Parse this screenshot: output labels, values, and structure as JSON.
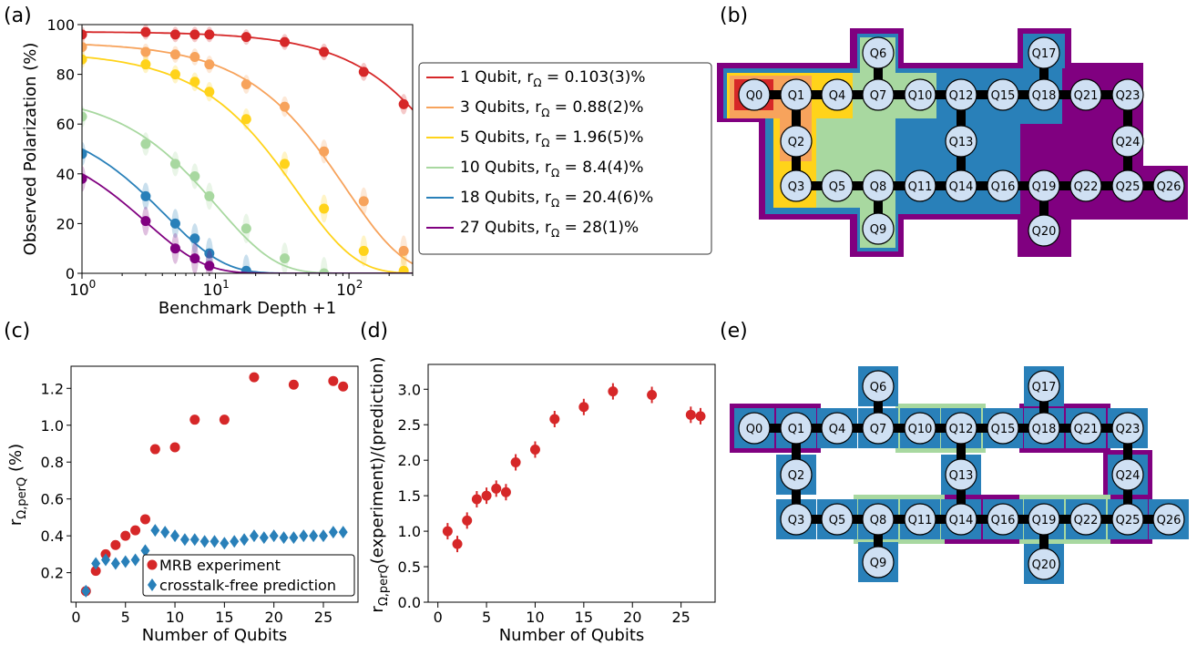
{
  "panel_labels": {
    "a": "(a)",
    "b": "(b)",
    "c": "(c)",
    "d": "(d)",
    "e": "(e)"
  },
  "colors": {
    "red": "#d62728",
    "orange": "#f7a35c",
    "yellow": "#ffd31a",
    "green": "#a8d8a0",
    "blue": "#2980b9",
    "purple": "#800080",
    "node_fill": "#cfe0f3",
    "edge": "#000000"
  },
  "chart_data": [
    {
      "id": "a",
      "type": "line",
      "xscale": "log",
      "xlabel": "Benchmark Depth +1",
      "ylabel": "Observed Polarization (%)",
      "xlim": [
        1,
        300
      ],
      "ylim": [
        0,
        100
      ],
      "xticks": [
        {
          "v": 1,
          "base": "10",
          "exp": "0"
        },
        {
          "v": 10,
          "base": "10",
          "exp": "1"
        },
        {
          "v": 100,
          "base": "10",
          "exp": "2"
        }
      ],
      "yticks": [
        0,
        20,
        40,
        60,
        80,
        100
      ],
      "legend_position": "right, outside",
      "series": [
        {
          "label": "1 Qubit,  r",
          "sub": "Ω",
          "value": " = 0.103(3)%",
          "color": "#d62728",
          "A": 97,
          "p": 0.9987,
          "x": [
            1,
            3,
            5,
            7,
            9,
            17,
            33,
            65,
            129,
            257
          ],
          "y": [
            96,
            97,
            96,
            96,
            96,
            95,
            93,
            89,
            81,
            68
          ]
        },
        {
          "label": "3 Qubits, r",
          "sub": "Ω",
          "value": " = 0.88(2)%",
          "color": "#f7a35c",
          "A": 92,
          "p": 0.9895,
          "x": [
            1,
            3,
            5,
            7,
            9,
            17,
            33,
            65,
            129,
            257
          ],
          "y": [
            91,
            89,
            88,
            87,
            84,
            76,
            67,
            49,
            29,
            9
          ]
        },
        {
          "label": "5 Qubits, r",
          "sub": "Ω",
          "value": " = 1.96(5)%",
          "color": "#ffd31a",
          "A": 87,
          "p": 0.976,
          "x": [
            1,
            3,
            5,
            7,
            9,
            17,
            33,
            65,
            129,
            257
          ],
          "y": [
            86,
            84,
            80,
            77,
            73,
            62,
            44,
            26,
            9,
            1
          ]
        },
        {
          "label": "10 Qubits, r",
          "sub": "Ω",
          "value": " = 8.4(4)%",
          "color": "#a8d8a0",
          "A": 66,
          "p": 0.908,
          "x": [
            1,
            3,
            5,
            7,
            9,
            17,
            33,
            65
          ],
          "y": [
            63,
            52,
            44,
            39,
            31,
            18,
            6,
            0
          ]
        },
        {
          "label": "18 Qubits, r",
          "sub": "Ω",
          "value": " = 20.4(6)%",
          "color": "#2980b9",
          "A": 50,
          "p": 0.79,
          "x": [
            1,
            3,
            5,
            7,
            9,
            17
          ],
          "y": [
            48,
            31,
            20,
            14,
            8,
            1
          ]
        },
        {
          "label": "27 Qubits, r",
          "sub": "Ω",
          "value": " = 28(1)%",
          "color": "#800080",
          "A": 40,
          "p": 0.72,
          "x": [
            1,
            3,
            5,
            7,
            9
          ],
          "y": [
            38,
            21,
            10,
            6,
            3
          ]
        }
      ]
    },
    {
      "id": "c",
      "type": "scatter",
      "xlabel": "Number of Qubits",
      "ylabel": "r",
      "ylabel_sub": "Ω,perQ",
      "ylabel_unit": " (%)",
      "xlim": [
        -0.5,
        28.5
      ],
      "ylim": [
        0.04,
        1.32
      ],
      "xticks": [
        0,
        5,
        10,
        15,
        20,
        25
      ],
      "yticks": [
        "0.2",
        "0.4",
        "0.6",
        "0.8",
        "1.0",
        "1.2"
      ],
      "legend_position": "lower-right",
      "series": [
        {
          "name": "MRB experiment",
          "color": "#d62728",
          "marker": "circle",
          "x": [
            1,
            2,
            3,
            4,
            5,
            6,
            7,
            8,
            10,
            12,
            15,
            18,
            22,
            26,
            27
          ],
          "y": [
            0.1,
            0.21,
            0.3,
            0.35,
            0.4,
            0.43,
            0.49,
            0.87,
            0.88,
            1.03,
            1.03,
            1.26,
            1.22,
            1.24,
            1.21
          ]
        },
        {
          "name": "crosstalk-free prediction",
          "color": "#2980b9",
          "marker": "diamond",
          "x": [
            1,
            2,
            3,
            4,
            5,
            6,
            7,
            8,
            9,
            10,
            11,
            12,
            13,
            14,
            15,
            16,
            17,
            18,
            19,
            20,
            21,
            22,
            23,
            24,
            25,
            26,
            27
          ],
          "y": [
            0.1,
            0.25,
            0.27,
            0.25,
            0.26,
            0.27,
            0.32,
            0.43,
            0.42,
            0.4,
            0.38,
            0.38,
            0.37,
            0.37,
            0.36,
            0.37,
            0.38,
            0.4,
            0.39,
            0.4,
            0.39,
            0.39,
            0.4,
            0.4,
            0.4,
            0.42,
            0.42
          ]
        }
      ]
    },
    {
      "id": "d",
      "type": "scatter",
      "xlabel": "Number of Qubits",
      "ylabel": "r",
      "ylabel_sub": "Ω,perQ",
      "ylabel_unit": "(experiment)/(prediction)",
      "xlim": [
        -1,
        28.5
      ],
      "ylim": [
        0,
        3.35
      ],
      "xticks": [
        0,
        5,
        10,
        15,
        20,
        25
      ],
      "yticks": [
        "0.0",
        "0.5",
        "1.0",
        "1.5",
        "2.0",
        "2.5",
        "3.0"
      ],
      "series": [
        {
          "color": "#d62728",
          "marker": "circle",
          "x": [
            1,
            2,
            3,
            4,
            5,
            6,
            7,
            8,
            10,
            12,
            15,
            18,
            22,
            26,
            27
          ],
          "y": [
            1.0,
            0.82,
            1.15,
            1.45,
            1.5,
            1.6,
            1.55,
            1.97,
            2.15,
            2.58,
            2.75,
            2.97,
            2.92,
            2.64,
            2.62
          ]
        }
      ]
    }
  ],
  "device_b": {
    "nodes": [
      "Q0",
      "Q1",
      "Q2",
      "Q3",
      "Q4",
      "Q5",
      "Q6",
      "Q7",
      "Q8",
      "Q9",
      "Q10",
      "Q11",
      "Q12",
      "Q13",
      "Q14",
      "Q15",
      "Q16",
      "Q17",
      "Q18",
      "Q19",
      "Q20",
      "Q21",
      "Q22",
      "Q23",
      "Q24",
      "Q25",
      "Q26"
    ]
  },
  "device_e": {
    "nodes": [
      "Q0",
      "Q1",
      "Q2",
      "Q3",
      "Q4",
      "Q5",
      "Q6",
      "Q7",
      "Q8",
      "Q9",
      "Q10",
      "Q11",
      "Q12",
      "Q13",
      "Q14",
      "Q15",
      "Q16",
      "Q17",
      "Q18",
      "Q19",
      "Q20",
      "Q21",
      "Q22",
      "Q23",
      "Q24",
      "Q25",
      "Q26"
    ]
  }
}
